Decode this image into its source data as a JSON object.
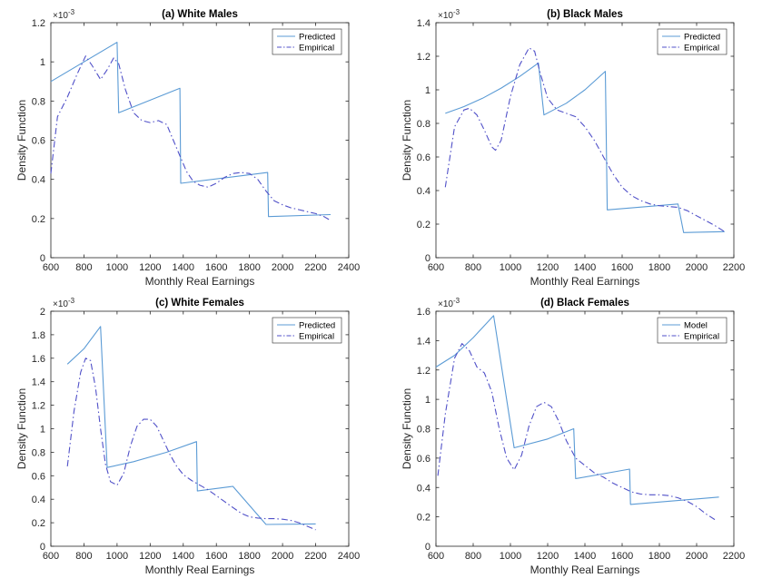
{
  "chart_data": [
    {
      "type": "line",
      "title": "(a) White Males",
      "xlabel": "Monthly Real Earnings",
      "ylabel": "Density Function",
      "exponent": "×10",
      "exponent_power": "-3",
      "xlim": [
        600,
        2400
      ],
      "ylim": [
        0,
        1.2
      ],
      "xticks": [
        600,
        800,
        1000,
        1200,
        1400,
        1600,
        1800,
        2000,
        2200,
        2400
      ],
      "yticks": [
        0,
        0.2,
        0.4,
        0.6,
        0.8,
        1,
        1.2
      ],
      "xticklabels": [
        "600",
        "800",
        "1000",
        "1200",
        "1400",
        "1600",
        "1800",
        "2000",
        "2200",
        "2400"
      ],
      "yticklabels": [
        "0",
        "0.2",
        "0.4",
        "0.6",
        "0.8",
        "1",
        "1.2"
      ],
      "grid": false,
      "legend_position": "top-right",
      "series": [
        {
          "name": "Predicted",
          "color": "#5b9bd5",
          "dash": "solid",
          "x": [
            600,
            1000,
            1010,
            1380,
            1385,
            1910,
            1915,
            2290
          ],
          "y": [
            0.9,
            1.1,
            0.74,
            0.865,
            0.38,
            0.435,
            0.21,
            0.22
          ]
        },
        {
          "name": "Empirical",
          "color": "#5050c8",
          "dash": "dashdot",
          "x": [
            600,
            640,
            700,
            760,
            810,
            850,
            900,
            940,
            980,
            1010,
            1050,
            1100,
            1150,
            1200,
            1250,
            1300,
            1340,
            1380,
            1420,
            1460,
            1500,
            1550,
            1600,
            1650,
            1700,
            1750,
            1800,
            1850,
            1900,
            1950,
            2000,
            2050,
            2100,
            2150,
            2200,
            2250,
            2290
          ],
          "y": [
            0.43,
            0.72,
            0.82,
            0.94,
            1.03,
            0.98,
            0.91,
            0.96,
            1.02,
            0.99,
            0.86,
            0.74,
            0.7,
            0.69,
            0.7,
            0.68,
            0.6,
            0.52,
            0.44,
            0.39,
            0.37,
            0.36,
            0.38,
            0.41,
            0.43,
            0.435,
            0.43,
            0.4,
            0.34,
            0.29,
            0.27,
            0.255,
            0.245,
            0.235,
            0.225,
            0.21,
            0.19
          ]
        }
      ]
    },
    {
      "type": "line",
      "title": "(b) Black Males",
      "xlabel": "Monthly Real Earnings",
      "ylabel": "Density Function",
      "exponent": "×10",
      "exponent_power": "-3",
      "xlim": [
        600,
        2200
      ],
      "ylim": [
        0,
        1.4
      ],
      "xticks": [
        600,
        800,
        1000,
        1200,
        1400,
        1600,
        1800,
        2000,
        2200
      ],
      "yticks": [
        0,
        0.2,
        0.4,
        0.6,
        0.8,
        1,
        1.2,
        1.4
      ],
      "xticklabels": [
        "600",
        "800",
        "1000",
        "1200",
        "1400",
        "1600",
        "1800",
        "2000",
        "2200"
      ],
      "yticklabels": [
        "0",
        "0.2",
        "0.4",
        "0.6",
        "0.8",
        "1",
        "1.2",
        "1.4"
      ],
      "grid": false,
      "legend_position": "top-right",
      "series": [
        {
          "name": "Predicted",
          "color": "#5b9bd5",
          "dash": "solid",
          "x": [
            650,
            750,
            850,
            950,
            1050,
            1150,
            1180,
            1300,
            1400,
            1510,
            1520,
            1900,
            1930,
            2150
          ],
          "y": [
            0.86,
            0.9,
            0.95,
            1.01,
            1.08,
            1.16,
            0.85,
            0.92,
            1.0,
            1.11,
            0.285,
            0.32,
            0.15,
            0.155
          ]
        },
        {
          "name": "Empirical",
          "color": "#5050c8",
          "dash": "dashdot",
          "x": [
            650,
            700,
            750,
            780,
            820,
            860,
            900,
            920,
            950,
            1000,
            1050,
            1100,
            1130,
            1160,
            1200,
            1250,
            1300,
            1350,
            1400,
            1450,
            1500,
            1550,
            1600,
            1650,
            1700,
            1750,
            1800,
            1850,
            1900,
            1950,
            2000,
            2050,
            2100,
            2150
          ],
          "y": [
            0.42,
            0.78,
            0.88,
            0.89,
            0.85,
            0.76,
            0.66,
            0.64,
            0.7,
            0.96,
            1.15,
            1.25,
            1.23,
            1.1,
            0.95,
            0.88,
            0.86,
            0.84,
            0.78,
            0.7,
            0.6,
            0.5,
            0.42,
            0.37,
            0.34,
            0.32,
            0.31,
            0.305,
            0.3,
            0.28,
            0.25,
            0.22,
            0.19,
            0.155
          ]
        }
      ]
    },
    {
      "type": "line",
      "title": "(c) White Females",
      "xlabel": "Monthly Real Earnings",
      "ylabel": "Density Function",
      "exponent": "×10",
      "exponent_power": "-3",
      "xlim": [
        600,
        2400
      ],
      "ylim": [
        0,
        2
      ],
      "xticks": [
        600,
        800,
        1000,
        1200,
        1400,
        1600,
        1800,
        2000,
        2200,
        2400
      ],
      "yticks": [
        0,
        0.2,
        0.4,
        0.6,
        0.8,
        1,
        1.2,
        1.4,
        1.6,
        1.8,
        2
      ],
      "xticklabels": [
        "600",
        "800",
        "1000",
        "1200",
        "1400",
        "1600",
        "1800",
        "2000",
        "2200",
        "2400"
      ],
      "yticklabels": [
        "0",
        "0.2",
        "0.4",
        "0.6",
        "0.8",
        "1",
        "1.2",
        "1.4",
        "1.6",
        "1.8",
        "2"
      ],
      "grid": false,
      "legend_position": "top-right",
      "series": [
        {
          "name": "Predicted",
          "color": "#5b9bd5",
          "dash": "solid",
          "x": [
            700,
            800,
            900,
            940,
            1100,
            1300,
            1480,
            1485,
            1700,
            1900,
            2200
          ],
          "y": [
            1.55,
            1.68,
            1.87,
            0.67,
            0.72,
            0.8,
            0.89,
            0.47,
            0.51,
            0.185,
            0.19
          ]
        },
        {
          "name": "Empirical",
          "color": "#5050c8",
          "dash": "dashdot",
          "x": [
            700,
            740,
            780,
            810,
            840,
            870,
            900,
            930,
            960,
            1000,
            1040,
            1080,
            1120,
            1160,
            1200,
            1240,
            1280,
            1320,
            1360,
            1400,
            1450,
            1500,
            1550,
            1600,
            1650,
            1700,
            1750,
            1800,
            1850,
            1900,
            1950,
            2000,
            2050,
            2100,
            2150,
            2200
          ],
          "y": [
            0.68,
            1.15,
            1.48,
            1.6,
            1.58,
            1.35,
            1.0,
            0.7,
            0.55,
            0.52,
            0.62,
            0.85,
            1.02,
            1.08,
            1.08,
            1.02,
            0.9,
            0.78,
            0.68,
            0.61,
            0.56,
            0.52,
            0.48,
            0.43,
            0.38,
            0.33,
            0.28,
            0.25,
            0.24,
            0.235,
            0.235,
            0.23,
            0.22,
            0.2,
            0.17,
            0.14
          ]
        }
      ]
    },
    {
      "type": "line",
      "title": "(d) Black Females",
      "xlabel": "Monthly Real Earnings",
      "ylabel": "Density Function",
      "exponent": "×10",
      "exponent_power": "-3",
      "xlim": [
        600,
        2200
      ],
      "ylim": [
        0,
        1.6
      ],
      "xticks": [
        600,
        800,
        1000,
        1200,
        1400,
        1600,
        1800,
        2000,
        2200
      ],
      "yticks": [
        0,
        0.2,
        0.4,
        0.6,
        0.8,
        1,
        1.2,
        1.4,
        1.6
      ],
      "xticklabels": [
        "600",
        "800",
        "1000",
        "1200",
        "1400",
        "1600",
        "1800",
        "2000",
        "2200"
      ],
      "yticklabels": [
        "0",
        "0.2",
        "0.4",
        "0.6",
        "0.8",
        "1",
        "1.2",
        "1.4",
        "1.6"
      ],
      "grid": false,
      "legend_position": "top-right",
      "series": [
        {
          "name": "Model",
          "color": "#5b9bd5",
          "dash": "solid",
          "x": [
            600,
            700,
            800,
            910,
            1020,
            1200,
            1340,
            1350,
            1640,
            1645,
            2120
          ],
          "y": [
            1.22,
            1.3,
            1.42,
            1.57,
            0.67,
            0.73,
            0.8,
            0.46,
            0.525,
            0.285,
            0.335
          ]
        },
        {
          "name": "Empirical",
          "color": "#5050c8",
          "dash": "dashdot",
          "x": [
            610,
            650,
            700,
            740,
            780,
            820,
            860,
            900,
            940,
            980,
            1020,
            1060,
            1100,
            1140,
            1180,
            1220,
            1260,
            1300,
            1350,
            1400,
            1450,
            1500,
            1550,
            1600,
            1650,
            1700,
            1750,
            1800,
            1850,
            1900,
            1950,
            2000,
            2050,
            2100
          ],
          "y": [
            0.48,
            0.9,
            1.28,
            1.38,
            1.33,
            1.22,
            1.18,
            1.05,
            0.8,
            0.6,
            0.52,
            0.62,
            0.82,
            0.95,
            0.98,
            0.95,
            0.85,
            0.72,
            0.6,
            0.55,
            0.5,
            0.47,
            0.43,
            0.4,
            0.37,
            0.355,
            0.35,
            0.35,
            0.345,
            0.33,
            0.305,
            0.27,
            0.22,
            0.18
          ]
        }
      ]
    }
  ]
}
